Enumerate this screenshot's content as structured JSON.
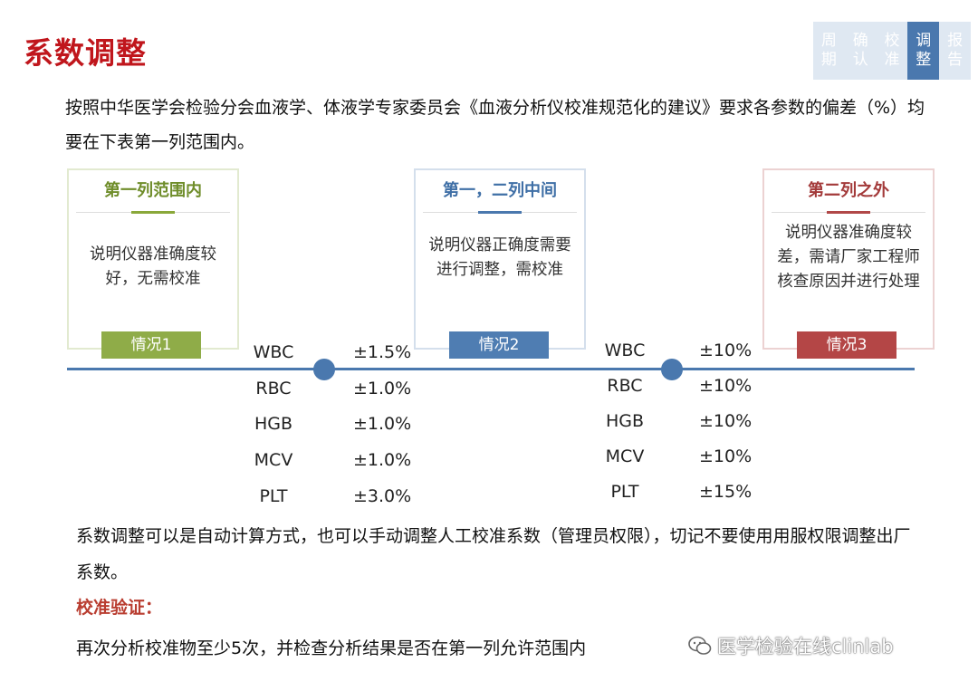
{
  "title": "系数调整",
  "nav": [
    {
      "label": "周期",
      "active": false
    },
    {
      "label": "确认",
      "active": false
    },
    {
      "label": "校准",
      "active": false
    },
    {
      "label": "调整",
      "active": true
    },
    {
      "label": "报告",
      "active": false
    }
  ],
  "intro": "按照中华医学会检验分会血液学、体液学专家委员会《血液分析仪校准规范化的建议》要求各参数的偏差（%）均要在下表第一列范围内。",
  "cards": [
    {
      "heading": "第一列范围内",
      "body": "说明仪器准确度较好，无需校准",
      "badge": "情况1"
    },
    {
      "heading": "第一，二列中间",
      "body": "说明仪器正确度需要进行调整，需校准",
      "badge": "情况2"
    },
    {
      "heading": "第二列之外",
      "body": "说明仪器准确度较差，需请厂家工程师核查原因并进行处理",
      "badge": "情况3"
    }
  ],
  "column1": [
    {
      "param": "WBC",
      "value": "±1.5%"
    },
    {
      "param": "RBC",
      "value": "±1.0%"
    },
    {
      "param": "HGB",
      "value": "±1.0%"
    },
    {
      "param": "MCV",
      "value": "±1.0%"
    },
    {
      "param": "PLT",
      "value": "±3.0%"
    }
  ],
  "column2": [
    {
      "param": "WBC",
      "value": "±10%"
    },
    {
      "param": "RBC",
      "value": "±10%"
    },
    {
      "param": "HGB",
      "value": "±10%"
    },
    {
      "param": "MCV",
      "value": "±10%"
    },
    {
      "param": "PLT",
      "value": "±15%"
    }
  ],
  "paragraph": "系数调整可以是自动计算方式，也可以手动调整人工校准系数（管理员权限），切记不要使用用服权限调整出厂系数。",
  "subheading": "校准验证：",
  "last_line": "再次分析校准物至少5次，并检查分析结果是否在第一列允许范围内",
  "watermark": "医学检验在线clinlab",
  "colors": {
    "title": "#c0161c",
    "accent_blue": "#4a78ae",
    "green": "#8fac48",
    "red": "#b44646"
  }
}
